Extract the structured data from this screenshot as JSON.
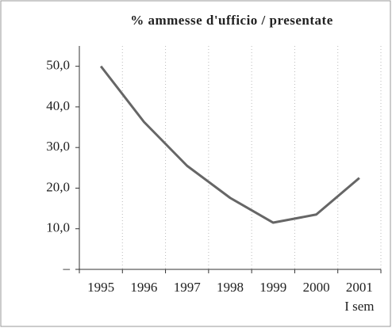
{
  "chart_data": {
    "type": "line",
    "title": "% ammesse d'ufficio / presentate",
    "categories": [
      "1995",
      "1996",
      "1997",
      "1998",
      "1999",
      "2000",
      "2001"
    ],
    "last_category_note": "I sem",
    "series": [
      {
        "name": "% ammesse d'ufficio / presentate",
        "color": "#666666",
        "values": [
          50.0,
          36.3,
          25.5,
          17.6,
          11.5,
          13.5,
          22.5
        ]
      }
    ],
    "ylim": [
      0,
      55
    ],
    "yticks": [
      {
        "value": 0,
        "label": "–"
      },
      {
        "value": 10,
        "label": "10,0"
      },
      {
        "value": 20,
        "label": "20,0"
      },
      {
        "value": 30,
        "label": "30,0"
      },
      {
        "value": 40,
        "label": "40,0"
      },
      {
        "value": 50,
        "label": "50,0"
      }
    ],
    "grid": true
  }
}
